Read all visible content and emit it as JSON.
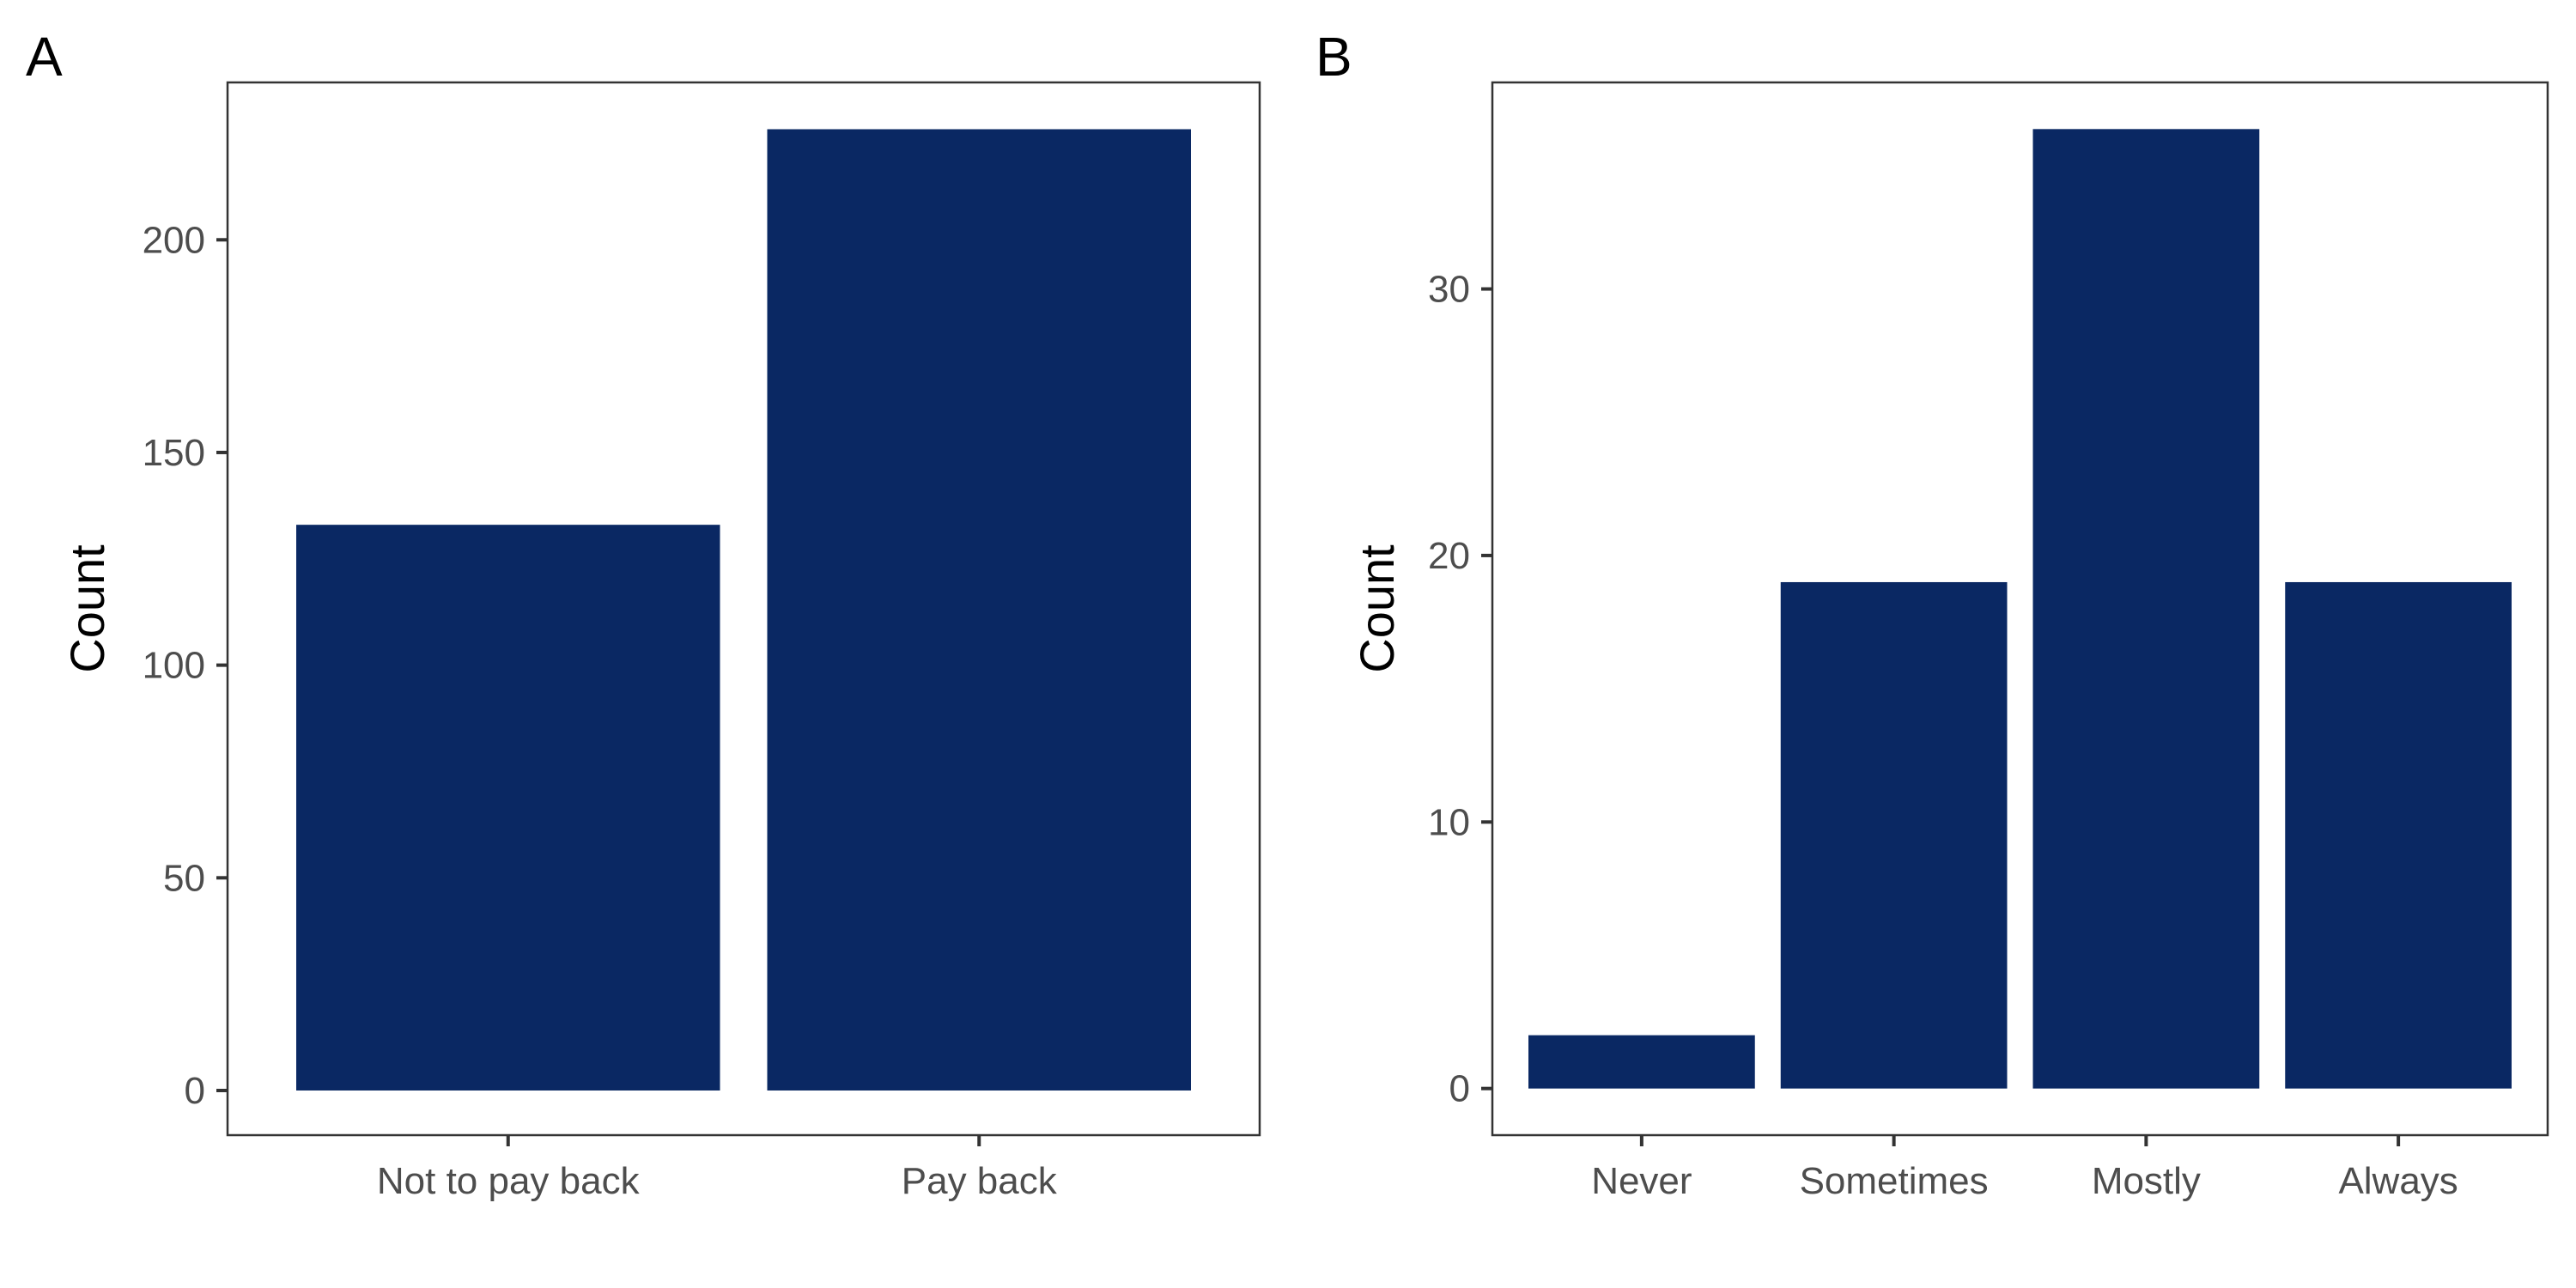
{
  "bar_color": "#0a2863",
  "chart_data": [
    {
      "type": "bar",
      "panel": "A",
      "categories": [
        "Not to pay back",
        "Pay back"
      ],
      "values": [
        133,
        226
      ],
      "xlabel": "",
      "ylabel": "Count",
      "yticks": [
        0,
        50,
        100,
        150,
        200
      ],
      "ylim": [
        -10.5,
        237
      ],
      "grid": false,
      "legend": "none"
    },
    {
      "type": "bar",
      "panel": "B",
      "categories": [
        "Never",
        "Sometimes",
        "Mostly",
        "Always"
      ],
      "values": [
        2,
        19,
        36,
        19
      ],
      "xlabel": "",
      "ylabel": "Count",
      "yticks": [
        0,
        10,
        20,
        30
      ],
      "ylim": [
        -1.75,
        37.75
      ],
      "grid": false,
      "legend": "none"
    }
  ]
}
